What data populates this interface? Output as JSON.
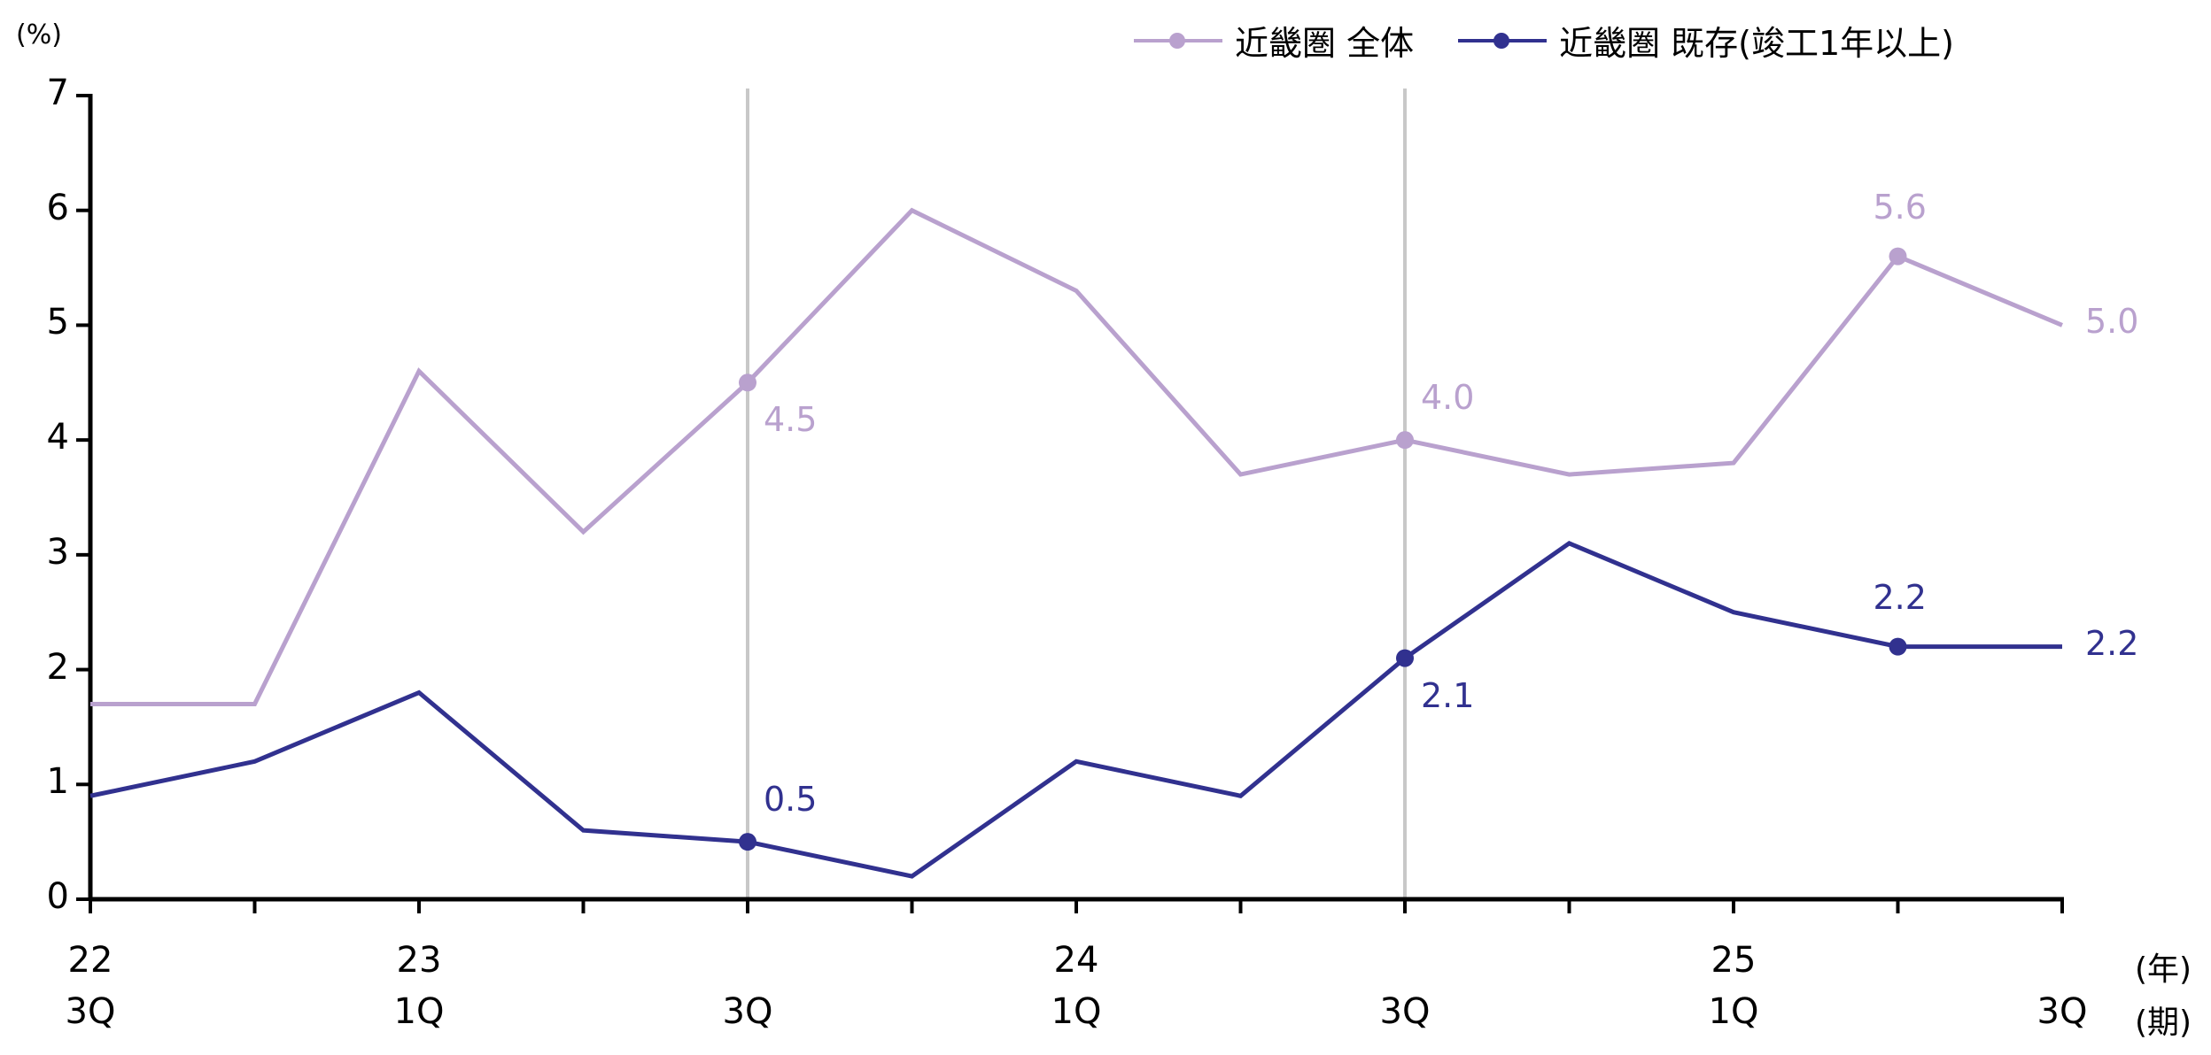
{
  "chart_data": {
    "type": "line",
    "title": "",
    "xlabel": "",
    "ylabel": "(%)",
    "ylim": [
      0,
      7
    ],
    "yticks": [
      0,
      1,
      2,
      3,
      4,
      5,
      6,
      7
    ],
    "grid": false,
    "legend_position": "top-right",
    "x": [
      "22-3Q",
      "22-4Q",
      "23-1Q",
      "23-2Q",
      "23-3Q",
      "23-4Q",
      "24-1Q",
      "24-2Q",
      "24-3Q",
      "24-4Q",
      "25-1Q",
      "25-2Q",
      "25-3Q"
    ],
    "x_tick_labels": [
      {
        "index": 0,
        "year": "22",
        "quarter": "3Q"
      },
      {
        "index": 2,
        "year": "23",
        "quarter": "1Q"
      },
      {
        "index": 4,
        "year": "",
        "quarter": "3Q"
      },
      {
        "index": 6,
        "year": "24",
        "quarter": "1Q"
      },
      {
        "index": 8,
        "year": "",
        "quarter": "3Q"
      },
      {
        "index": 10,
        "year": "25",
        "quarter": "1Q"
      },
      {
        "index": 12,
        "year": "",
        "quarter": "3Q"
      }
    ],
    "x_unit_year": "(年)",
    "x_unit_period": "(期)",
    "reference_lines_at": [
      4,
      8
    ],
    "series": [
      {
        "name": "近畿圏 全体",
        "color": "#B9A1CE",
        "values": [
          1.7,
          1.7,
          4.6,
          3.2,
          4.5,
          6.0,
          5.3,
          3.7,
          4.0,
          3.7,
          3.8,
          5.6,
          5.0
        ],
        "markers_at": [
          4,
          8,
          11
        ],
        "labels": [
          {
            "index": 4,
            "text": "4.5",
            "position": "below-right"
          },
          {
            "index": 8,
            "text": "4.0",
            "position": "above-right"
          },
          {
            "index": 11,
            "text": "5.6",
            "position": "above"
          },
          {
            "index": 12,
            "text": "5.0",
            "position": "right"
          }
        ]
      },
      {
        "name": "近畿圏 既存(竣工1年以上)",
        "color": "#31318F",
        "values": [
          0.9,
          1.2,
          1.8,
          0.6,
          0.5,
          0.2,
          1.2,
          0.9,
          2.1,
          3.1,
          2.5,
          2.2,
          2.2
        ],
        "markers_at": [
          4,
          8,
          11
        ],
        "labels": [
          {
            "index": 4,
            "text": "0.5",
            "position": "above-right"
          },
          {
            "index": 8,
            "text": "2.1",
            "position": "below-right"
          },
          {
            "index": 11,
            "text": "2.2",
            "position": "above"
          },
          {
            "index": 12,
            "text": "2.2",
            "position": "right"
          }
        ]
      }
    ]
  },
  "legend": {
    "items": [
      {
        "label": "近畿圏 全体",
        "color": "#B9A1CE"
      },
      {
        "label": "近畿圏 既存(竣工1年以上)",
        "color": "#31318F"
      }
    ]
  },
  "axis": {
    "y_unit": "(%)",
    "x_unit_year": "(年)",
    "x_unit_period": "(期)",
    "axis_color": "#000000",
    "reference_line_color": "#C8C8C8"
  }
}
